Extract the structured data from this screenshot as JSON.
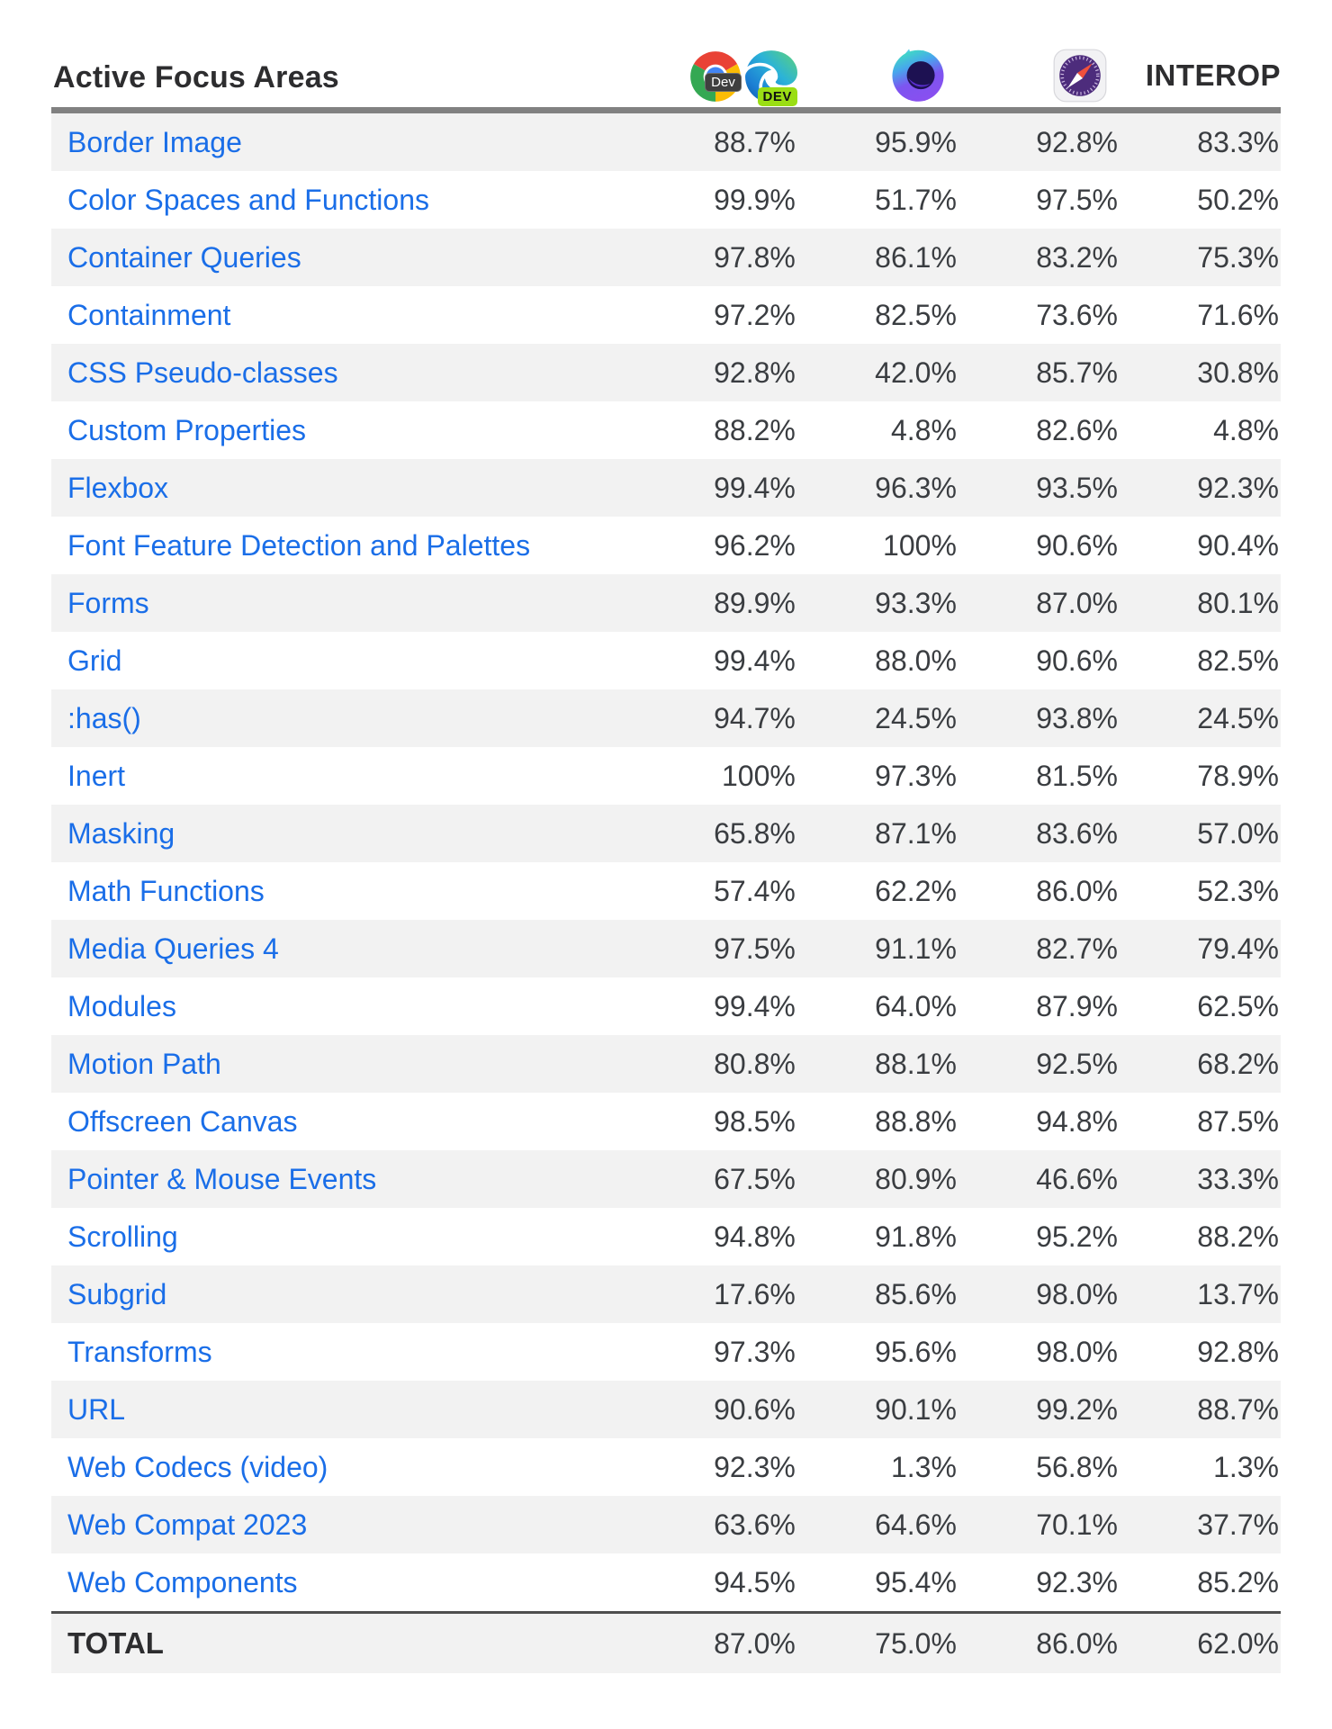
{
  "header": {
    "title": "Active Focus Areas",
    "interop_label": "INTEROP",
    "chrome_badge": "Dev",
    "edge_badge": "DEV",
    "column_icons": [
      "chrome-dev-icon",
      "edge-dev-icon",
      "firefox-nightly-icon",
      "safari-technology-preview-icon"
    ]
  },
  "colors": {
    "link_blue": "#1a6ee8",
    "value_text": "#3a3d41",
    "row_stripe": "#f2f2f2",
    "header_border": "#818181",
    "total_border": "#4e4e4e",
    "chrome_badge_bg": "#3f3f3f",
    "edge_badge_bg": "#9ade14"
  },
  "table": {
    "rows": [
      {
        "label": "Border Image",
        "values": [
          "88.7%",
          "95.9%",
          "92.8%",
          "83.3%"
        ]
      },
      {
        "label": "Color Spaces and Functions",
        "values": [
          "99.9%",
          "51.7%",
          "97.5%",
          "50.2%"
        ]
      },
      {
        "label": "Container Queries",
        "values": [
          "97.8%",
          "86.1%",
          "83.2%",
          "75.3%"
        ]
      },
      {
        "label": "Containment",
        "values": [
          "97.2%",
          "82.5%",
          "73.6%",
          "71.6%"
        ]
      },
      {
        "label": "CSS Pseudo-classes",
        "values": [
          "92.8%",
          "42.0%",
          "85.7%",
          "30.8%"
        ]
      },
      {
        "label": "Custom Properties",
        "values": [
          "88.2%",
          "4.8%",
          "82.6%",
          "4.8%"
        ]
      },
      {
        "label": "Flexbox",
        "values": [
          "99.4%",
          "96.3%",
          "93.5%",
          "92.3%"
        ]
      },
      {
        "label": "Font Feature Detection and Palettes",
        "values": [
          "96.2%",
          "100%",
          "90.6%",
          "90.4%"
        ]
      },
      {
        "label": "Forms",
        "values": [
          "89.9%",
          "93.3%",
          "87.0%",
          "80.1%"
        ]
      },
      {
        "label": "Grid",
        "values": [
          "99.4%",
          "88.0%",
          "90.6%",
          "82.5%"
        ]
      },
      {
        "label": ":has()",
        "values": [
          "94.7%",
          "24.5%",
          "93.8%",
          "24.5%"
        ]
      },
      {
        "label": "Inert",
        "values": [
          "100%",
          "97.3%",
          "81.5%",
          "78.9%"
        ]
      },
      {
        "label": "Masking",
        "values": [
          "65.8%",
          "87.1%",
          "83.6%",
          "57.0%"
        ]
      },
      {
        "label": "Math Functions",
        "values": [
          "57.4%",
          "62.2%",
          "86.0%",
          "52.3%"
        ]
      },
      {
        "label": "Media Queries 4",
        "values": [
          "97.5%",
          "91.1%",
          "82.7%",
          "79.4%"
        ]
      },
      {
        "label": "Modules",
        "values": [
          "99.4%",
          "64.0%",
          "87.9%",
          "62.5%"
        ]
      },
      {
        "label": "Motion Path",
        "values": [
          "80.8%",
          "88.1%",
          "92.5%",
          "68.2%"
        ]
      },
      {
        "label": "Offscreen Canvas",
        "values": [
          "98.5%",
          "88.8%",
          "94.8%",
          "87.5%"
        ]
      },
      {
        "label": "Pointer & Mouse Events",
        "values": [
          "67.5%",
          "80.9%",
          "46.6%",
          "33.3%"
        ]
      },
      {
        "label": "Scrolling",
        "values": [
          "94.8%",
          "91.8%",
          "95.2%",
          "88.2%"
        ]
      },
      {
        "label": "Subgrid",
        "values": [
          "17.6%",
          "85.6%",
          "98.0%",
          "13.7%"
        ]
      },
      {
        "label": "Transforms",
        "values": [
          "97.3%",
          "95.6%",
          "98.0%",
          "92.8%"
        ]
      },
      {
        "label": "URL",
        "values": [
          "90.6%",
          "90.1%",
          "99.2%",
          "88.7%"
        ]
      },
      {
        "label": "Web Codecs (video)",
        "values": [
          "92.3%",
          "1.3%",
          "56.8%",
          "1.3%"
        ]
      },
      {
        "label": "Web Compat 2023",
        "values": [
          "63.6%",
          "64.6%",
          "70.1%",
          "37.7%"
        ]
      },
      {
        "label": "Web Components",
        "values": [
          "94.5%",
          "95.4%",
          "92.3%",
          "85.2%"
        ]
      }
    ],
    "total": {
      "label": "TOTAL",
      "values": [
        "87.0%",
        "75.0%",
        "86.0%",
        "62.0%"
      ]
    }
  }
}
